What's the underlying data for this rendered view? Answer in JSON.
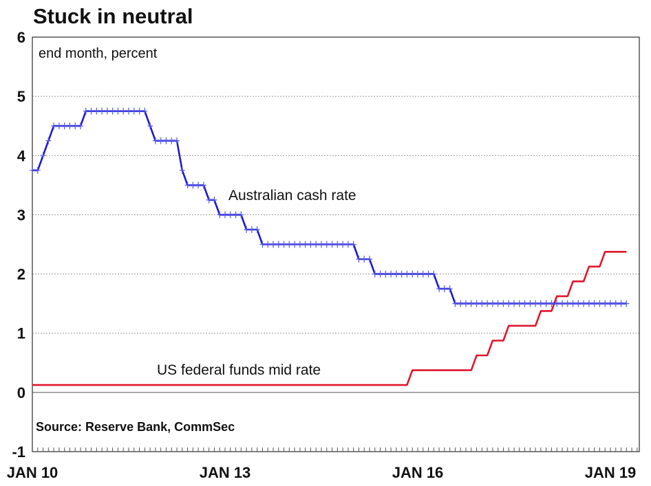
{
  "chart_data": {
    "type": "line",
    "title": "Stuck in neutral",
    "subtitle": "end month, percent",
    "source": "Source: Reserve Bank, CommSec",
    "xlabel": "",
    "ylabel": "",
    "ylim": [
      -1,
      6
    ],
    "y_ticks": [
      "6",
      "5",
      "4",
      "3",
      "2",
      "1",
      "0",
      "-1"
    ],
    "y_tick_values": [
      6,
      5,
      4,
      3,
      2,
      1,
      0,
      -1
    ],
    "x_ticks": [
      {
        "label": "JAN 10",
        "month_index": 0
      },
      {
        "label": "JAN 13",
        "month_index": 36
      },
      {
        "label": "JAN 16",
        "month_index": 72
      },
      {
        "label": "JAN 19",
        "month_index": 108
      }
    ],
    "x_range_months": [
      0,
      113.5
    ],
    "x_unit": "months since Jan 2010",
    "grid": true,
    "series": [
      {
        "name": "Australian cash rate",
        "color": "#1a1ad6",
        "marker": "+",
        "values": [
          3.75,
          3.75,
          4,
          4.25,
          4.5,
          4.5,
          4.5,
          4.5,
          4.5,
          4.5,
          4.75,
          4.75,
          4.75,
          4.75,
          4.75,
          4.75,
          4.75,
          4.75,
          4.75,
          4.75,
          4.75,
          4.75,
          4.5,
          4.25,
          4.25,
          4.25,
          4.25,
          4.25,
          3.75,
          3.5,
          3.5,
          3.5,
          3.5,
          3.25,
          3.25,
          3,
          3,
          3,
          3,
          3,
          2.75,
          2.75,
          2.75,
          2.5,
          2.5,
          2.5,
          2.5,
          2.5,
          2.5,
          2.5,
          2.5,
          2.5,
          2.5,
          2.5,
          2.5,
          2.5,
          2.5,
          2.5,
          2.5,
          2.5,
          2.5,
          2.25,
          2.25,
          2.25,
          2,
          2,
          2,
          2,
          2,
          2,
          2,
          2,
          2,
          2,
          2,
          2,
          1.75,
          1.75,
          1.75,
          1.5,
          1.5,
          1.5,
          1.5,
          1.5,
          1.5,
          1.5,
          1.5,
          1.5,
          1.5,
          1.5,
          1.5,
          1.5,
          1.5,
          1.5,
          1.5,
          1.5,
          1.5,
          1.5,
          1.5,
          1.5,
          1.5,
          1.5,
          1.5,
          1.5,
          1.5,
          1.5,
          1.5,
          1.5,
          1.5,
          1.5,
          1.5,
          1.5
        ]
      },
      {
        "name": "US federal funds mid rate",
        "color": "#e0162b",
        "marker": "none",
        "values": [
          0.125,
          0.125,
          0.125,
          0.125,
          0.125,
          0.125,
          0.125,
          0.125,
          0.125,
          0.125,
          0.125,
          0.125,
          0.125,
          0.125,
          0.125,
          0.125,
          0.125,
          0.125,
          0.125,
          0.125,
          0.125,
          0.125,
          0.125,
          0.125,
          0.125,
          0.125,
          0.125,
          0.125,
          0.125,
          0.125,
          0.125,
          0.125,
          0.125,
          0.125,
          0.125,
          0.125,
          0.125,
          0.125,
          0.125,
          0.125,
          0.125,
          0.125,
          0.125,
          0.125,
          0.125,
          0.125,
          0.125,
          0.125,
          0.125,
          0.125,
          0.125,
          0.125,
          0.125,
          0.125,
          0.125,
          0.125,
          0.125,
          0.125,
          0.125,
          0.125,
          0.125,
          0.125,
          0.125,
          0.125,
          0.125,
          0.125,
          0.125,
          0.125,
          0.125,
          0.125,
          0.125,
          0.375,
          0.375,
          0.375,
          0.375,
          0.375,
          0.375,
          0.375,
          0.375,
          0.375,
          0.375,
          0.375,
          0.375,
          0.625,
          0.625,
          0.625,
          0.875,
          0.875,
          0.875,
          1.125,
          1.125,
          1.125,
          1.125,
          1.125,
          1.125,
          1.375,
          1.375,
          1.375,
          1.625,
          1.625,
          1.625,
          1.875,
          1.875,
          1.875,
          2.125,
          2.125,
          2.125,
          2.375,
          2.375,
          2.375,
          2.375,
          2.375
        ]
      }
    ]
  }
}
